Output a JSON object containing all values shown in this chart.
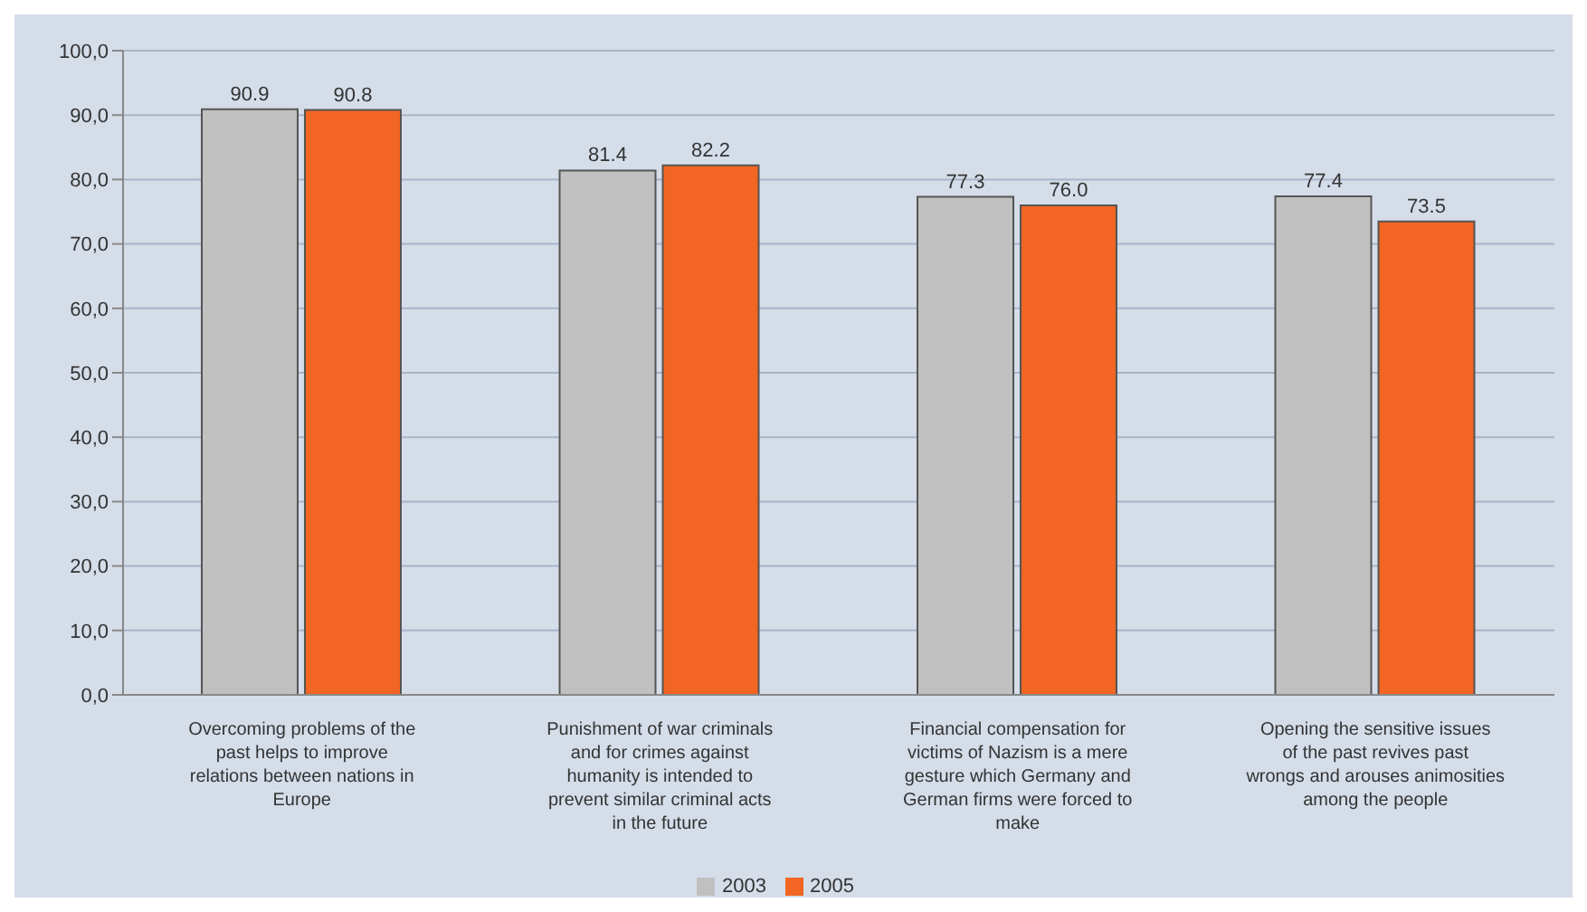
{
  "chart_data": {
    "type": "bar",
    "categories": [
      "Overcoming problems of the past helps to improve relations between nations in Europe",
      "Punishment of war criminals and for crimes against humanity is intended to prevent similar criminal acts in the future",
      "Financial compensation for victims of Nazism is a mere gesture which Germany and German firms were forced to make",
      "Opening the sensitive issues of the past revives past wrongs and arouses animosities among the people"
    ],
    "series": [
      {
        "name": "2003",
        "color": "#c0c0c0",
        "values": [
          90.9,
          81.4,
          77.3,
          77.4
        ],
        "value_labels": [
          "90.9",
          "81.4",
          "77.3",
          "77.4"
        ]
      },
      {
        "name": "2005",
        "color": "#f26522",
        "values": [
          90.8,
          82.2,
          76.0,
          73.5
        ],
        "value_labels": [
          "90.8",
          "82.2",
          "76.0",
          "73.5"
        ]
      }
    ],
    "ylim": [
      0,
      100
    ],
    "yticks": [
      {
        "value": 0,
        "label": "0,0"
      },
      {
        "value": 10,
        "label": "10,0"
      },
      {
        "value": 20,
        "label": "20,0"
      },
      {
        "value": 30,
        "label": "30,0"
      },
      {
        "value": 40,
        "label": "40,0"
      },
      {
        "value": 50,
        "label": "50,0"
      },
      {
        "value": 60,
        "label": "60,0"
      },
      {
        "value": 70,
        "label": "70,0"
      },
      {
        "value": 80,
        "label": "80,0"
      },
      {
        "value": 90,
        "label": "90,0"
      },
      {
        "value": 100,
        "label": "100,0"
      }
    ],
    "grid": "y",
    "legend": "bottom"
  }
}
